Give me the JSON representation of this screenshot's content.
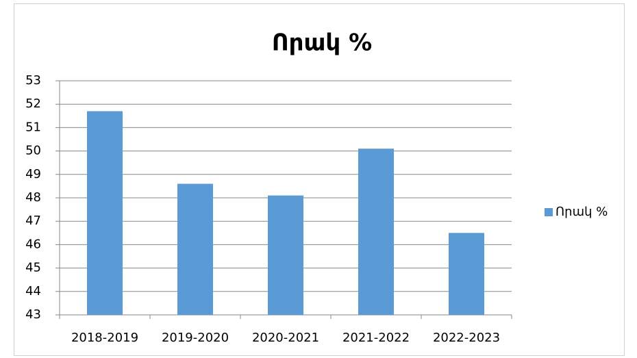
{
  "chart_data": {
    "type": "bar",
    "title": "Որակ %",
    "categories": [
      "2018-2019",
      "2019-2020",
      "2020-2021",
      "2021-2022",
      "2022-2023"
    ],
    "series": [
      {
        "name": "Որակ %",
        "color": "#5b9bd5",
        "values": [
          51.7,
          48.6,
          48.1,
          50.1,
          46.5
        ]
      }
    ],
    "ylim": [
      43,
      53
    ],
    "yticks": [
      43,
      44,
      45,
      46,
      47,
      48,
      49,
      50,
      51,
      52,
      53
    ],
    "grid": true,
    "legend": "right"
  }
}
